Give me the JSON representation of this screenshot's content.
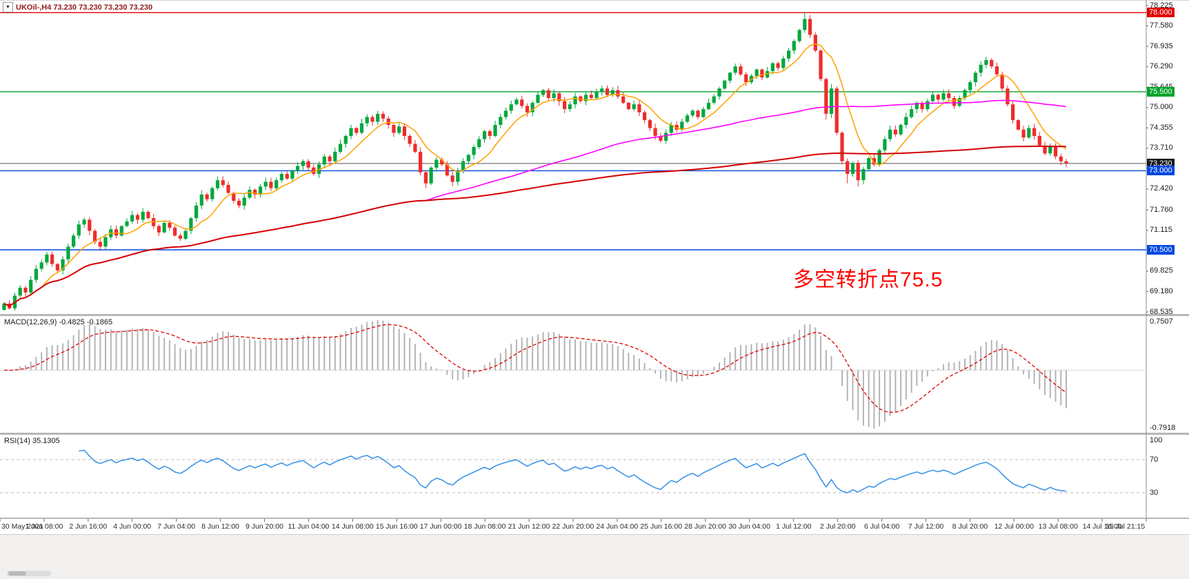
{
  "header": {
    "readout": "UKOil-,H4  73.230 73.230 73.230 73.230",
    "symbol": "UKOil-",
    "timeframe": "H4",
    "color": "#8f1b1b"
  },
  "icons": {
    "dropdown": "▼"
  },
  "annotation": {
    "text": "多空转折点75.5",
    "color": "#ff0000"
  },
  "price_axis": {
    "ticks": [
      {
        "label": "78.225",
        "price": 78.225
      },
      {
        "label": "77.580",
        "price": 77.58
      },
      {
        "label": "76.935",
        "price": 76.935
      },
      {
        "label": "76.290",
        "price": 76.29
      },
      {
        "label": "75.645",
        "price": 75.645
      },
      {
        "label": "75.000",
        "price": 75.0
      },
      {
        "label": "74.355",
        "price": 74.355
      },
      {
        "label": "73.710",
        "price": 73.71
      },
      {
        "label": "72.420",
        "price": 72.42
      },
      {
        "label": "71.760",
        "price": 71.76
      },
      {
        "label": "71.115",
        "price": 71.115
      },
      {
        "label": "69.825",
        "price": 69.825
      },
      {
        "label": "69.180",
        "price": 69.18
      },
      {
        "label": "68.535",
        "price": 68.535
      }
    ],
    "badges": [
      {
        "label": "78.000",
        "price": 78.0,
        "bg": "#e00000"
      },
      {
        "label": "75.500",
        "price": 75.5,
        "bg": "#00a22a"
      },
      {
        "label": "73.230",
        "price": 73.23,
        "bg": "#15181d"
      },
      {
        "label": "73.000",
        "price": 73.0,
        "bg": "#0047e0"
      },
      {
        "label": "70.500",
        "price": 70.5,
        "bg": "#0047e0"
      }
    ]
  },
  "panels": {
    "macd": {
      "label": "MACD(12,26,9) -0.4825 -0.1865",
      "axis_max": "0.7507",
      "axis_min": "-0.7918",
      "histogram_color": "#b4b4b4",
      "signal_color": "#e00000"
    },
    "rsi": {
      "label": "RSI(14) 35.1305",
      "line_color": "#3d95e8",
      "levels": [
        {
          "label": "100",
          "value": 100,
          "line": false
        },
        {
          "label": "70",
          "value": 70,
          "line": true
        },
        {
          "label": "30",
          "value": 30,
          "line": true
        }
      ]
    }
  },
  "chart_data": {
    "type": "candlestick",
    "symbol": "UKOil-",
    "timeframe": "H4",
    "y_range": [
      68.535,
      78.225
    ],
    "current_price": 73.23,
    "up_color": "#00a83c",
    "down_color": "#f02b2b",
    "first_open": 68.6,
    "closes": [
      68.8,
      68.65,
      69.05,
      69.3,
      69.15,
      69.55,
      69.9,
      70.1,
      70.35,
      70.05,
      69.85,
      70.2,
      70.6,
      70.95,
      71.3,
      71.45,
      71.1,
      70.75,
      70.6,
      70.9,
      71.15,
      70.95,
      71.25,
      71.4,
      71.6,
      71.45,
      71.7,
      71.5,
      71.25,
      71.05,
      71.35,
      71.2,
      70.95,
      70.85,
      71.1,
      71.5,
      71.9,
      72.25,
      72.1,
      72.45,
      72.7,
      72.55,
      72.3,
      72.05,
      71.9,
      72.15,
      72.4,
      72.25,
      72.5,
      72.65,
      72.45,
      72.7,
      72.9,
      72.75,
      73.0,
      73.15,
      73.3,
      73.1,
      72.9,
      73.2,
      73.45,
      73.3,
      73.6,
      73.85,
      74.1,
      74.35,
      74.2,
      74.5,
      74.7,
      74.55,
      74.8,
      74.65,
      74.45,
      74.2,
      74.4,
      74.1,
      73.85,
      73.6,
      72.95,
      72.6,
      73.1,
      73.35,
      73.2,
      72.85,
      72.65,
      73.0,
      73.3,
      73.5,
      73.75,
      74.0,
      74.25,
      74.1,
      74.45,
      74.7,
      74.9,
      75.1,
      75.25,
      75.05,
      74.85,
      75.15,
      75.4,
      75.55,
      75.3,
      75.45,
      75.2,
      74.95,
      75.1,
      75.35,
      75.2,
      75.4,
      75.3,
      75.5,
      75.6,
      75.4,
      75.55,
      75.35,
      75.15,
      74.95,
      75.1,
      74.85,
      74.6,
      74.35,
      74.1,
      73.95,
      74.2,
      74.45,
      74.3,
      74.55,
      74.75,
      74.9,
      74.7,
      74.95,
      75.15,
      75.35,
      75.6,
      75.85,
      76.1,
      76.3,
      76.05,
      75.8,
      76.0,
      76.2,
      75.95,
      76.15,
      76.4,
      76.25,
      76.55,
      76.8,
      77.1,
      77.45,
      77.8,
      77.3,
      76.8,
      75.9,
      74.8,
      75.6,
      74.2,
      73.3,
      72.9,
      73.25,
      72.7,
      73.05,
      73.4,
      73.2,
      73.65,
      74.0,
      74.3,
      74.15,
      74.45,
      74.7,
      74.95,
      75.15,
      74.95,
      75.2,
      75.4,
      75.25,
      75.45,
      75.3,
      75.05,
      75.3,
      75.55,
      75.8,
      76.1,
      76.35,
      76.5,
      76.3,
      76.05,
      75.6,
      75.1,
      74.6,
      74.3,
      74.05,
      74.35,
      74.1,
      73.8,
      73.55,
      73.75,
      73.45,
      73.3,
      73.23
    ],
    "wick_overrides": {
      "79": {
        "l": 72.45
      },
      "150": {
        "h": 78.0
      },
      "151": {
        "h": 77.92
      },
      "154": {
        "l": 74.62
      },
      "158": {
        "l": 72.6
      },
      "160": {
        "l": 72.5
      }
    },
    "hlines": [
      {
        "price": 78.0,
        "color": "#e00000"
      },
      {
        "price": 75.5,
        "color": "#00a22a"
      },
      {
        "price": 73.0,
        "color": "#0047e0"
      },
      {
        "price": 70.5,
        "color": "#0047e0"
      }
    ],
    "moving_averages": [
      {
        "name": "ma-fast",
        "period": 8,
        "color": "#ffa000",
        "width": 1.5
      },
      {
        "name": "ma-mid",
        "period": 80,
        "color": "#ff00ff",
        "width": 1.6
      },
      {
        "name": "ma-slow",
        "period": 999,
        "color": "#d40000",
        "width": 2
      }
    ],
    "x_labels": [
      "30 May 2021",
      "1 Jun 08:00",
      "2 Jun 16:00",
      "4 Jun 00:00",
      "7 Jun 04:00",
      "8 Jun 12:00",
      "9 Jun 20:00",
      "11 Jun 04:00",
      "14 Jun 08:00",
      "15 Jun 16:00",
      "17 Jun 00:00",
      "18 Jun 08:00",
      "21 Jun 12:00",
      "22 Jun 20:00",
      "24 Jun 04:00",
      "25 Jun 16:00",
      "28 Jun 20:00",
      "30 Jun 04:00",
      "1 Jul 12:00",
      "2 Jul 20:00",
      "6 Jul 04:00",
      "7 Jul 12:00",
      "8 Jul 20:00",
      "12 Jul 00:00",
      "13 Jul 08:00",
      "14 Jul 16:00",
      "15 Jul 21:15"
    ]
  }
}
